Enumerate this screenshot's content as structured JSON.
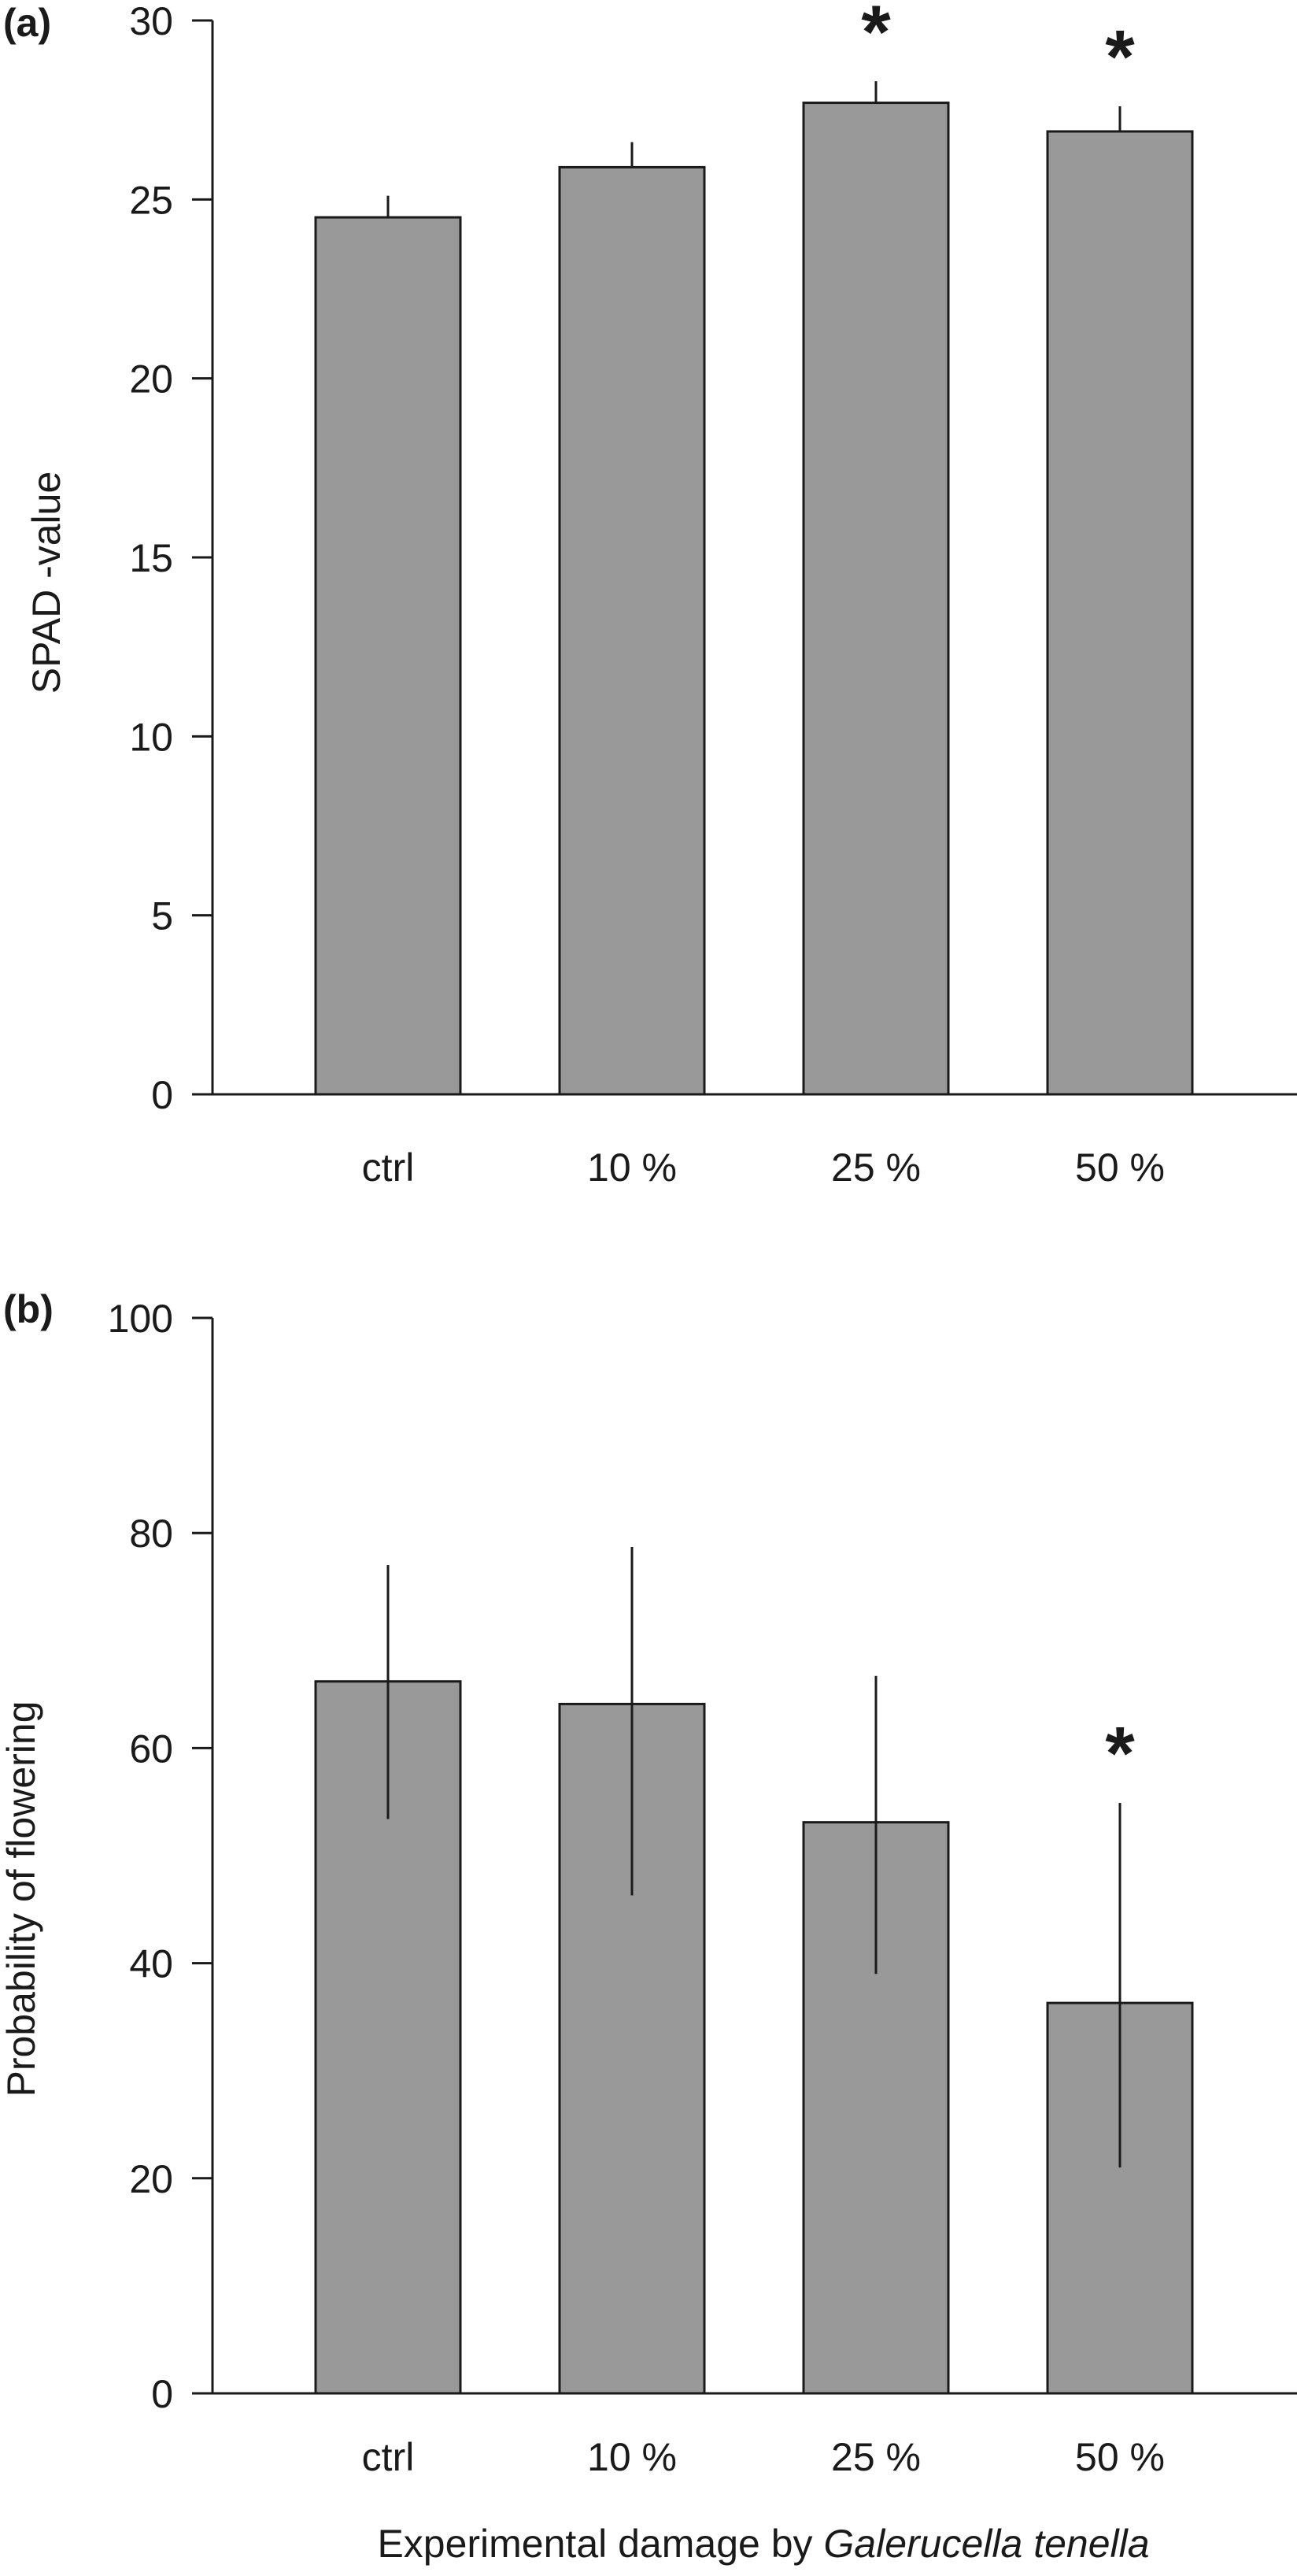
{
  "chart_data": [
    {
      "type": "bar",
      "panel_label": "(a)",
      "ylabel": "SPAD -value",
      "ylim": [
        0,
        30
      ],
      "yticks": [
        0,
        5,
        10,
        15,
        20,
        25,
        30
      ],
      "categories": [
        "ctrl",
        "10 %",
        "25 %",
        "50 %"
      ],
      "values": [
        24.5,
        25.9,
        27.7,
        26.9
      ],
      "error_upper": [
        25.1,
        26.6,
        28.3,
        27.6
      ],
      "error_lower": [
        24.5,
        25.9,
        27.7,
        26.9
      ],
      "significance": [
        "",
        "",
        "*",
        "*"
      ],
      "bar_color": "#999999"
    },
    {
      "type": "bar",
      "panel_label": "(b)",
      "ylabel": "Probability of flowering",
      "xlabel_plain": "Experimental damage by ",
      "xlabel_italic": "Galerucella tenella",
      "ylim": [
        0,
        100
      ],
      "yticks": [
        0,
        20,
        40,
        60,
        80,
        100
      ],
      "categories": [
        "ctrl",
        "10 %",
        "25 %",
        "50 %"
      ],
      "values": [
        66.2,
        64.1,
        53.1,
        36.3
      ],
      "error_upper": [
        77.0,
        78.7,
        66.7,
        54.9
      ],
      "error_lower": [
        53.4,
        46.3,
        39.0,
        21.0
      ],
      "significance": [
        "",
        "",
        "",
        "*"
      ],
      "bar_color": "#999999"
    }
  ]
}
